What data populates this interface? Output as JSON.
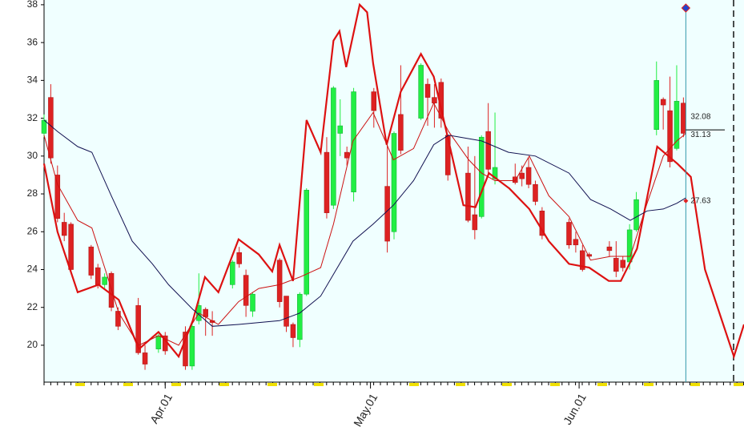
{
  "chart_data": {
    "type": "candlestick",
    "xlim": [
      0,
      104
    ],
    "ylim": [
      18.05,
      38.25
    ],
    "yticks": [
      20,
      22,
      24,
      26,
      28,
      30,
      32,
      34,
      36,
      38
    ],
    "xticks": [
      {
        "value": 18,
        "label": "Apr.01"
      },
      {
        "value": 48.5,
        "label": "May.01"
      },
      {
        "value": 79.5,
        "label": "Jun.01"
      }
    ],
    "up_color": "#22ee44",
    "down_color": "#dd2222",
    "candles": {
      "x": [
        0,
        1,
        2,
        3,
        4,
        7,
        8,
        9,
        10,
        11,
        14,
        15,
        17,
        18,
        21,
        22,
        23,
        24,
        25,
        28,
        29,
        30,
        31,
        35,
        36,
        37,
        38,
        39,
        42,
        43,
        44,
        45,
        46,
        49,
        51,
        52,
        53,
        56,
        57,
        58,
        59,
        60,
        63,
        64,
        65,
        66,
        67,
        70,
        71,
        72,
        73,
        74,
        78,
        79,
        80,
        81,
        84,
        85,
        86,
        87,
        88,
        91,
        92,
        93,
        94,
        95
      ],
      "open": [
        31.2,
        33.1,
        29.0,
        26.5,
        26.4,
        25.2,
        24.1,
        23.2,
        23.8,
        21.8,
        22.1,
        19.6,
        19.8,
        20.5,
        20.7,
        18.9,
        21.3,
        21.9,
        21.3,
        23.2,
        24.9,
        23.7,
        21.8,
        24.5,
        22.6,
        21.1,
        20.3,
        22.7,
        30.2,
        27.4,
        31.2,
        30.2,
        28.1,
        33.4,
        28.4,
        26.0,
        32.2,
        32.0,
        33.8,
        33.1,
        33.9,
        31.1,
        29.1,
        26.9,
        26.8,
        31.3,
        28.8,
        28.9,
        29.1,
        29.4,
        28.5,
        27.1,
        26.5,
        25.6,
        25.0,
        24.8,
        25.2,
        24.6,
        24.5,
        24.4,
        26.1,
        31.4,
        33.0,
        32.4,
        30.4,
        32.8
      ],
      "high": [
        32.2,
        33.8,
        29.5,
        27.0,
        26.5,
        25.3,
        24.3,
        23.8,
        23.9,
        22.0,
        22.5,
        20.0,
        20.6,
        20.7,
        21.0,
        21.2,
        23.8,
        22.0,
        21.8,
        24.5,
        25.2,
        24.0,
        22.8,
        24.6,
        22.6,
        21.2,
        22.8,
        28.3,
        31.0,
        33.7,
        33.0,
        30.5,
        33.6,
        33.6,
        30.6,
        31.3,
        34.8,
        34.9,
        34.1,
        33.8,
        34.1,
        31.1,
        30.5,
        30.0,
        31.1,
        32.8,
        32.3,
        29.6,
        29.5,
        29.9,
        28.7,
        27.3,
        26.7,
        26.0,
        25.3,
        24.9,
        25.5,
        25.5,
        24.7,
        26.4,
        28.1,
        35.0,
        33.1,
        34.2,
        34.8,
        33.1
      ],
      "low": [
        31.0,
        29.6,
        26.5,
        25.5,
        23.9,
        23.5,
        23.0,
        23.0,
        21.8,
        20.8,
        19.5,
        18.7,
        19.6,
        19.5,
        18.7,
        18.7,
        21.1,
        20.5,
        20.5,
        23.0,
        24.1,
        21.5,
        21.5,
        22.0,
        20.7,
        19.9,
        19.9,
        22.6,
        26.7,
        27.2,
        30.0,
        29.5,
        27.6,
        31.5,
        24.9,
        25.6,
        30.1,
        31.9,
        31.6,
        31.5,
        31.5,
        28.7,
        26.5,
        25.6,
        26.7,
        28.9,
        28.5,
        28.5,
        28.4,
        28.3,
        27.4,
        25.6,
        25.1,
        24.9,
        23.9,
        24.6,
        24.7,
        23.6,
        23.9,
        24.0,
        26.0,
        31.1,
        31.4,
        29.4,
        30.3,
        31.0
      ],
      "close": [
        31.9,
        29.9,
        26.7,
        25.8,
        24.0,
        23.7,
        23.2,
        23.6,
        22.0,
        21.0,
        19.6,
        19.0,
        20.5,
        19.7,
        18.9,
        21.0,
        22.1,
        21.5,
        21.2,
        24.4,
        24.3,
        22.1,
        22.7,
        22.3,
        21.0,
        20.4,
        22.7,
        28.2,
        27.0,
        33.6,
        31.6,
        29.9,
        33.4,
        32.4,
        25.5,
        31.2,
        30.3,
        34.8,
        33.1,
        32.8,
        32.0,
        29.0,
        26.6,
        26.1,
        31.0,
        29.3,
        29.4,
        28.6,
        28.8,
        28.5,
        27.6,
        25.8,
        25.3,
        25.3,
        24.0,
        24.7,
        25.0,
        23.9,
        24.1,
        26.1,
        27.7,
        34.0,
        32.7,
        29.7,
        32.9,
        31.2
      ]
    },
    "series": [
      {
        "color": "#dd1111",
        "width": 2.2,
        "x": [
          0,
          2,
          5,
          8.1,
          11.1,
          14.1,
          17,
          20,
          22.1,
          23.9,
          25.9,
          28.9,
          31.9,
          33.9,
          35,
          37,
          39,
          41.1,
          43,
          43.9,
          44.9,
          46.9,
          48,
          48.9,
          50.9,
          53,
          56,
          57.9,
          60.1,
          62.3,
          64.1,
          66.1,
          69.1,
          72.1,
          75,
          78,
          81,
          83.9,
          85.7,
          88.1,
          91.1,
          94.1,
          96.1,
          98.2,
          102.5,
          104
        ],
        "values": [
          29.6,
          26.0,
          22.8,
          23.2,
          22.4,
          19.8,
          20.7,
          19.4,
          21.3,
          23.6,
          22.8,
          25.6,
          24.8,
          23.9,
          25.3,
          23.4,
          31.9,
          30.2,
          36.1,
          36.6,
          34.7,
          38.0,
          37.6,
          34.9,
          30.6,
          33.4,
          35.4,
          34.2,
          30.8,
          27.4,
          27.3,
          29.1,
          28.3,
          27.2,
          25.5,
          24.3,
          24.1,
          23.4,
          23.4,
          25.1,
          30.5,
          29.6,
          28.9,
          24.0,
          19.4,
          21.1
        ]
      },
      {
        "color": "#cc1111",
        "width": 1,
        "x": [
          0,
          2,
          5,
          7.1,
          9.1,
          11.1,
          14.1,
          17,
          20,
          23,
          25.9,
          28.9,
          31.9,
          35,
          38,
          41.1,
          43,
          45.9,
          48.9,
          51.9,
          54.9,
          57.9,
          60.1,
          63.1,
          65,
          67,
          70,
          72.1,
          75,
          78,
          81.2,
          84.2,
          87.1,
          89.6,
          92,
          94,
          95.4
        ],
        "values": [
          31.1,
          28.5,
          26.6,
          26.2,
          24.0,
          21.7,
          20.0,
          20.5,
          20.0,
          21.7,
          21.1,
          22.3,
          23.0,
          23.2,
          23.6,
          24.1,
          26.4,
          30.8,
          32.3,
          29.8,
          30.4,
          32.8,
          31.3,
          29.8,
          29.1,
          28.7,
          28.7,
          30.0,
          27.9,
          26.8,
          24.5,
          24.7,
          24.7,
          27.5,
          30.0,
          30.8,
          31.2
        ]
      },
      {
        "color": "#101050",
        "width": 1,
        "x": [
          0,
          2,
          5,
          7.1,
          10,
          13.1,
          16.1,
          18.5,
          22.1,
          25,
          28.9,
          35,
          38,
          41.1,
          45.9,
          48.9,
          51.9,
          54.9,
          57.9,
          60.1,
          65,
          69,
          73,
          78,
          81.2,
          84.2,
          87.1,
          89.6,
          92,
          94,
          95.4
        ],
        "values": [
          31.9,
          31.3,
          30.5,
          30.2,
          27.9,
          25.5,
          24.3,
          23.2,
          21.9,
          21.0,
          21.1,
          21.3,
          21.7,
          22.6,
          25.5,
          26.4,
          27.4,
          28.7,
          30.6,
          31.1,
          30.8,
          30.2,
          30.0,
          29.1,
          27.7,
          27.2,
          26.6,
          27.1,
          27.2,
          27.5,
          27.8
        ]
      }
    ],
    "cursor_values": [
      32.08,
      31.13,
      27.63
    ]
  }
}
